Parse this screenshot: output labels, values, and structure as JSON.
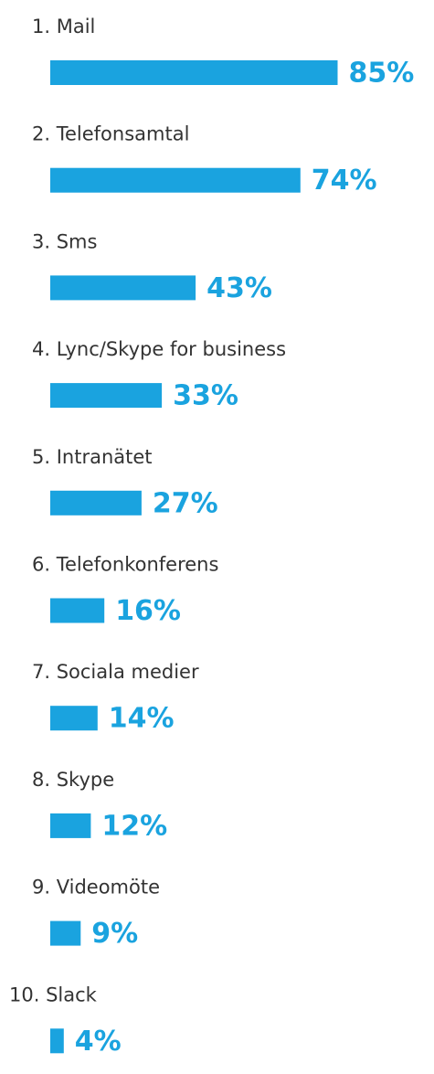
{
  "chart_data": {
    "type": "bar",
    "orientation": "horizontal",
    "categories": [
      "1. Mail",
      "2. Telefonsamtal",
      "3. Sms",
      "4. Lync/Skype for business",
      "5. Intranätet",
      "6. Telefonkonferens",
      "7. Sociala medier",
      "8. Skype",
      "9. Videomöte",
      "10. Slack"
    ],
    "values": [
      85,
      74,
      43,
      33,
      27,
      16,
      14,
      12,
      9,
      4
    ],
    "value_labels": [
      "85%",
      "74%",
      "43%",
      "33%",
      "27%",
      "16%",
      "14%",
      "12%",
      "9%",
      "4%"
    ],
    "color": "#1aa3df",
    "xlim": [
      0,
      100
    ]
  }
}
